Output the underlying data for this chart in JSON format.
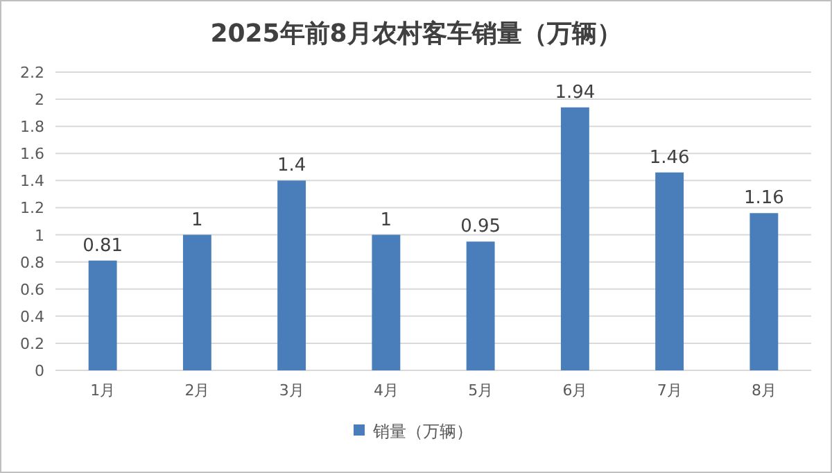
{
  "chart_data": {
    "type": "bar",
    "title": "2025年前8月农村客车销量（万辆）",
    "categories": [
      "1月",
      "2月",
      "3月",
      "4月",
      "5月",
      "6月",
      "7月",
      "8月"
    ],
    "series": [
      {
        "name": "销量（万辆）",
        "color": "#4a7ebb",
        "values": [
          0.81,
          1,
          1.4,
          1,
          0.95,
          1.94,
          1.46,
          1.16
        ]
      }
    ],
    "ylim": [
      0,
      2.2
    ],
    "yticks": [
      0,
      0.2,
      0.4,
      0.6,
      0.8,
      1,
      1.2,
      1.4,
      1.6,
      1.8,
      2,
      2.2
    ],
    "grid": "y",
    "legend": "bottom",
    "data_labels": true
  }
}
